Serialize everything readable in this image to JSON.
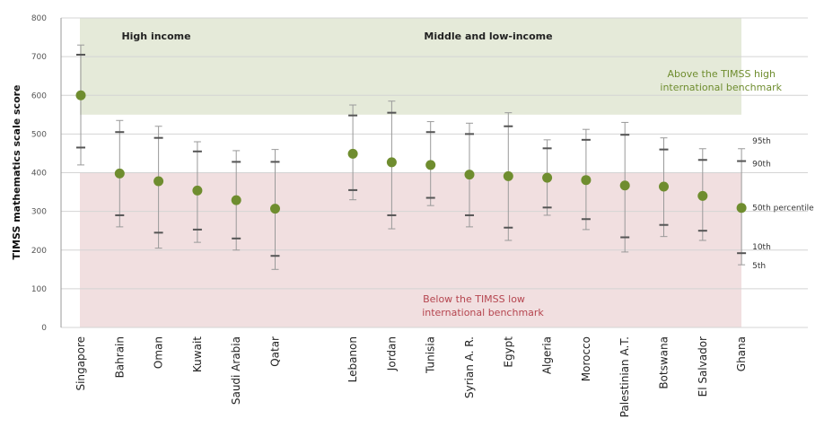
{
  "chart_data": {
    "type": "scatter",
    "title": "",
    "ylabel": "TIMSS mathematics scale score",
    "ylim": [
      0,
      800
    ],
    "yticks": [
      0,
      100,
      200,
      300,
      400,
      500,
      600,
      700,
      800
    ],
    "grid": true,
    "groups": [
      {
        "label": "High income",
        "categories": [
          "Singapore",
          "Bahrain",
          "Oman",
          "Kuwait",
          "Saudi Arabia",
          "Qatar"
        ]
      },
      {
        "label": "Middle and low-income",
        "categories": [
          "Lebanon",
          "Jordan",
          "Tunisia",
          "Syrian A. R.",
          "Egypt",
          "Algeria",
          "Morocco",
          "Palestinian A.T.",
          "Botswana",
          "El Salvador",
          "Ghana"
        ]
      }
    ],
    "bands": {
      "high": {
        "from": 550,
        "to": 800,
        "label_line1": "Above the TIMSS high",
        "label_line2": "international benchmark",
        "color": "#e5ead9"
      },
      "low": {
        "from": 0,
        "to": 400,
        "label_line1": "Below the TIMSS low",
        "label_line2": "international benchmark",
        "color": "#f1dfe0"
      }
    },
    "percentile_labels": {
      "p95": "95th",
      "p90": "90th",
      "p50": "50th percentile",
      "p10": "10th",
      "p5": "5th"
    },
    "marker_color": "#6f8d2f",
    "series": [
      {
        "name": "Singapore",
        "p5": 420,
        "p10": 465,
        "p50": 600,
        "p90": 705,
        "p95": 730
      },
      {
        "name": "Bahrain",
        "p5": 260,
        "p10": 290,
        "p50": 398,
        "p90": 505,
        "p95": 535
      },
      {
        "name": "Oman",
        "p5": 205,
        "p10": 245,
        "p50": 378,
        "p90": 490,
        "p95": 520
      },
      {
        "name": "Kuwait",
        "p5": 220,
        "p10": 253,
        "p50": 354,
        "p90": 455,
        "p95": 480
      },
      {
        "name": "Saudi Arabia",
        "p5": 200,
        "p10": 230,
        "p50": 329,
        "p90": 428,
        "p95": 457
      },
      {
        "name": "Qatar",
        "p5": 150,
        "p10": 185,
        "p50": 307,
        "p90": 428,
        "p95": 460
      },
      {
        "name": "Lebanon",
        "p5": 330,
        "p10": 355,
        "p50": 449,
        "p90": 548,
        "p95": 575
      },
      {
        "name": "Jordan",
        "p5": 255,
        "p10": 290,
        "p50": 427,
        "p90": 555,
        "p95": 585
      },
      {
        "name": "Tunisia",
        "p5": 315,
        "p10": 335,
        "p50": 420,
        "p90": 505,
        "p95": 532
      },
      {
        "name": "Syrian A. R.",
        "p5": 260,
        "p10": 290,
        "p50": 395,
        "p90": 500,
        "p95": 528
      },
      {
        "name": "Egypt",
        "p5": 225,
        "p10": 258,
        "p50": 391,
        "p90": 520,
        "p95": 555
      },
      {
        "name": "Algeria",
        "p5": 290,
        "p10": 310,
        "p50": 387,
        "p90": 463,
        "p95": 485
      },
      {
        "name": "Morocco",
        "p5": 253,
        "p10": 280,
        "p50": 381,
        "p90": 485,
        "p95": 512
      },
      {
        "name": "Palestinian A.T.",
        "p5": 195,
        "p10": 233,
        "p50": 367,
        "p90": 498,
        "p95": 530
      },
      {
        "name": "Botswana",
        "p5": 235,
        "p10": 265,
        "p50": 364,
        "p90": 460,
        "p95": 490
      },
      {
        "name": "El Salvador",
        "p5": 225,
        "p10": 250,
        "p50": 340,
        "p90": 433,
        "p95": 462
      },
      {
        "name": "Ghana",
        "p5": 162,
        "p10": 192,
        "p50": 309,
        "p90": 430,
        "p95": 462
      }
    ]
  }
}
